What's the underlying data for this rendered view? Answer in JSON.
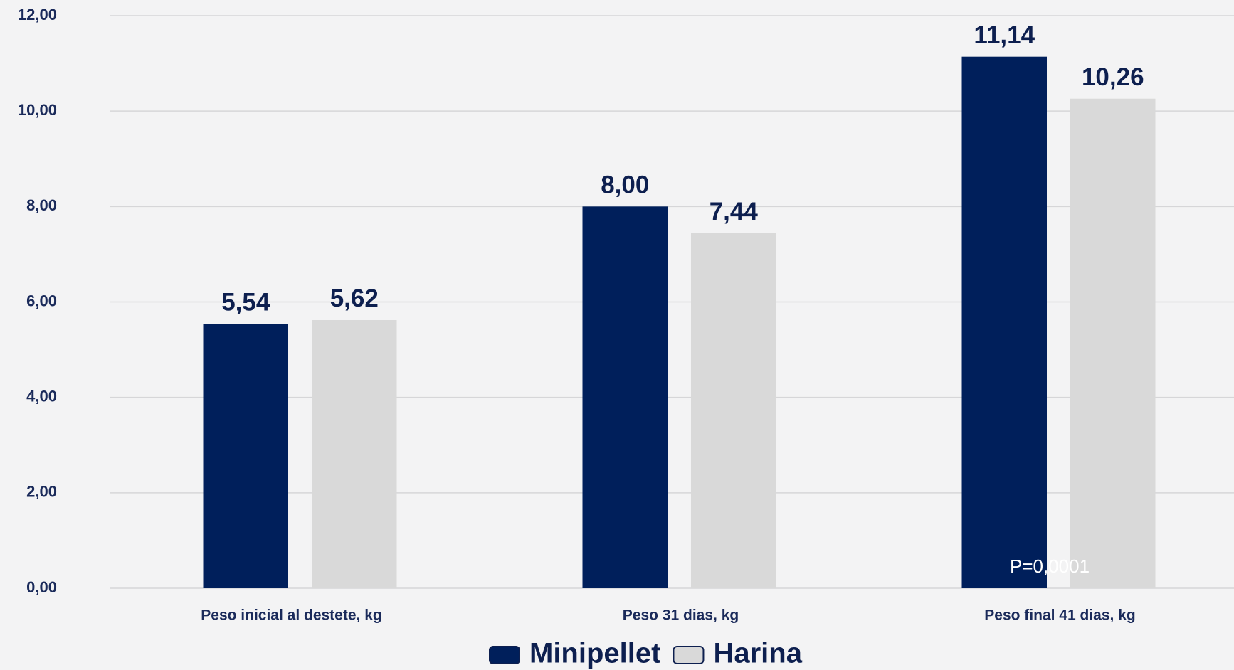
{
  "chart_data": {
    "type": "bar",
    "categories": [
      "Peso inicial al destete, kg",
      "Peso 31 dias, kg",
      "Peso final 41 dias, kg"
    ],
    "series": [
      {
        "name": "Minipellet",
        "color": "#001f5b",
        "values": [
          5.54,
          8.0,
          11.14
        ],
        "value_labels": [
          "5,54",
          "8,00",
          "11,14"
        ]
      },
      {
        "name": "Harina",
        "color": "#d9d9d9",
        "values": [
          5.62,
          7.44,
          10.26
        ],
        "value_labels": [
          "5,62",
          "7,44",
          "10,26"
        ]
      }
    ],
    "ylim": [
      0,
      12
    ],
    "yticks": [
      {
        "value": 0,
        "label": "0,00"
      },
      {
        "value": 2,
        "label": "2,00"
      },
      {
        "value": 4,
        "label": "4,00"
      },
      {
        "value": 6,
        "label": "6,00"
      },
      {
        "value": 8,
        "label": "8,00"
      },
      {
        "value": 10,
        "label": "10,00"
      },
      {
        "value": 12,
        "label": "12,00"
      }
    ],
    "grid": true,
    "legend": "bottom",
    "annotation": "P=0,0001"
  }
}
